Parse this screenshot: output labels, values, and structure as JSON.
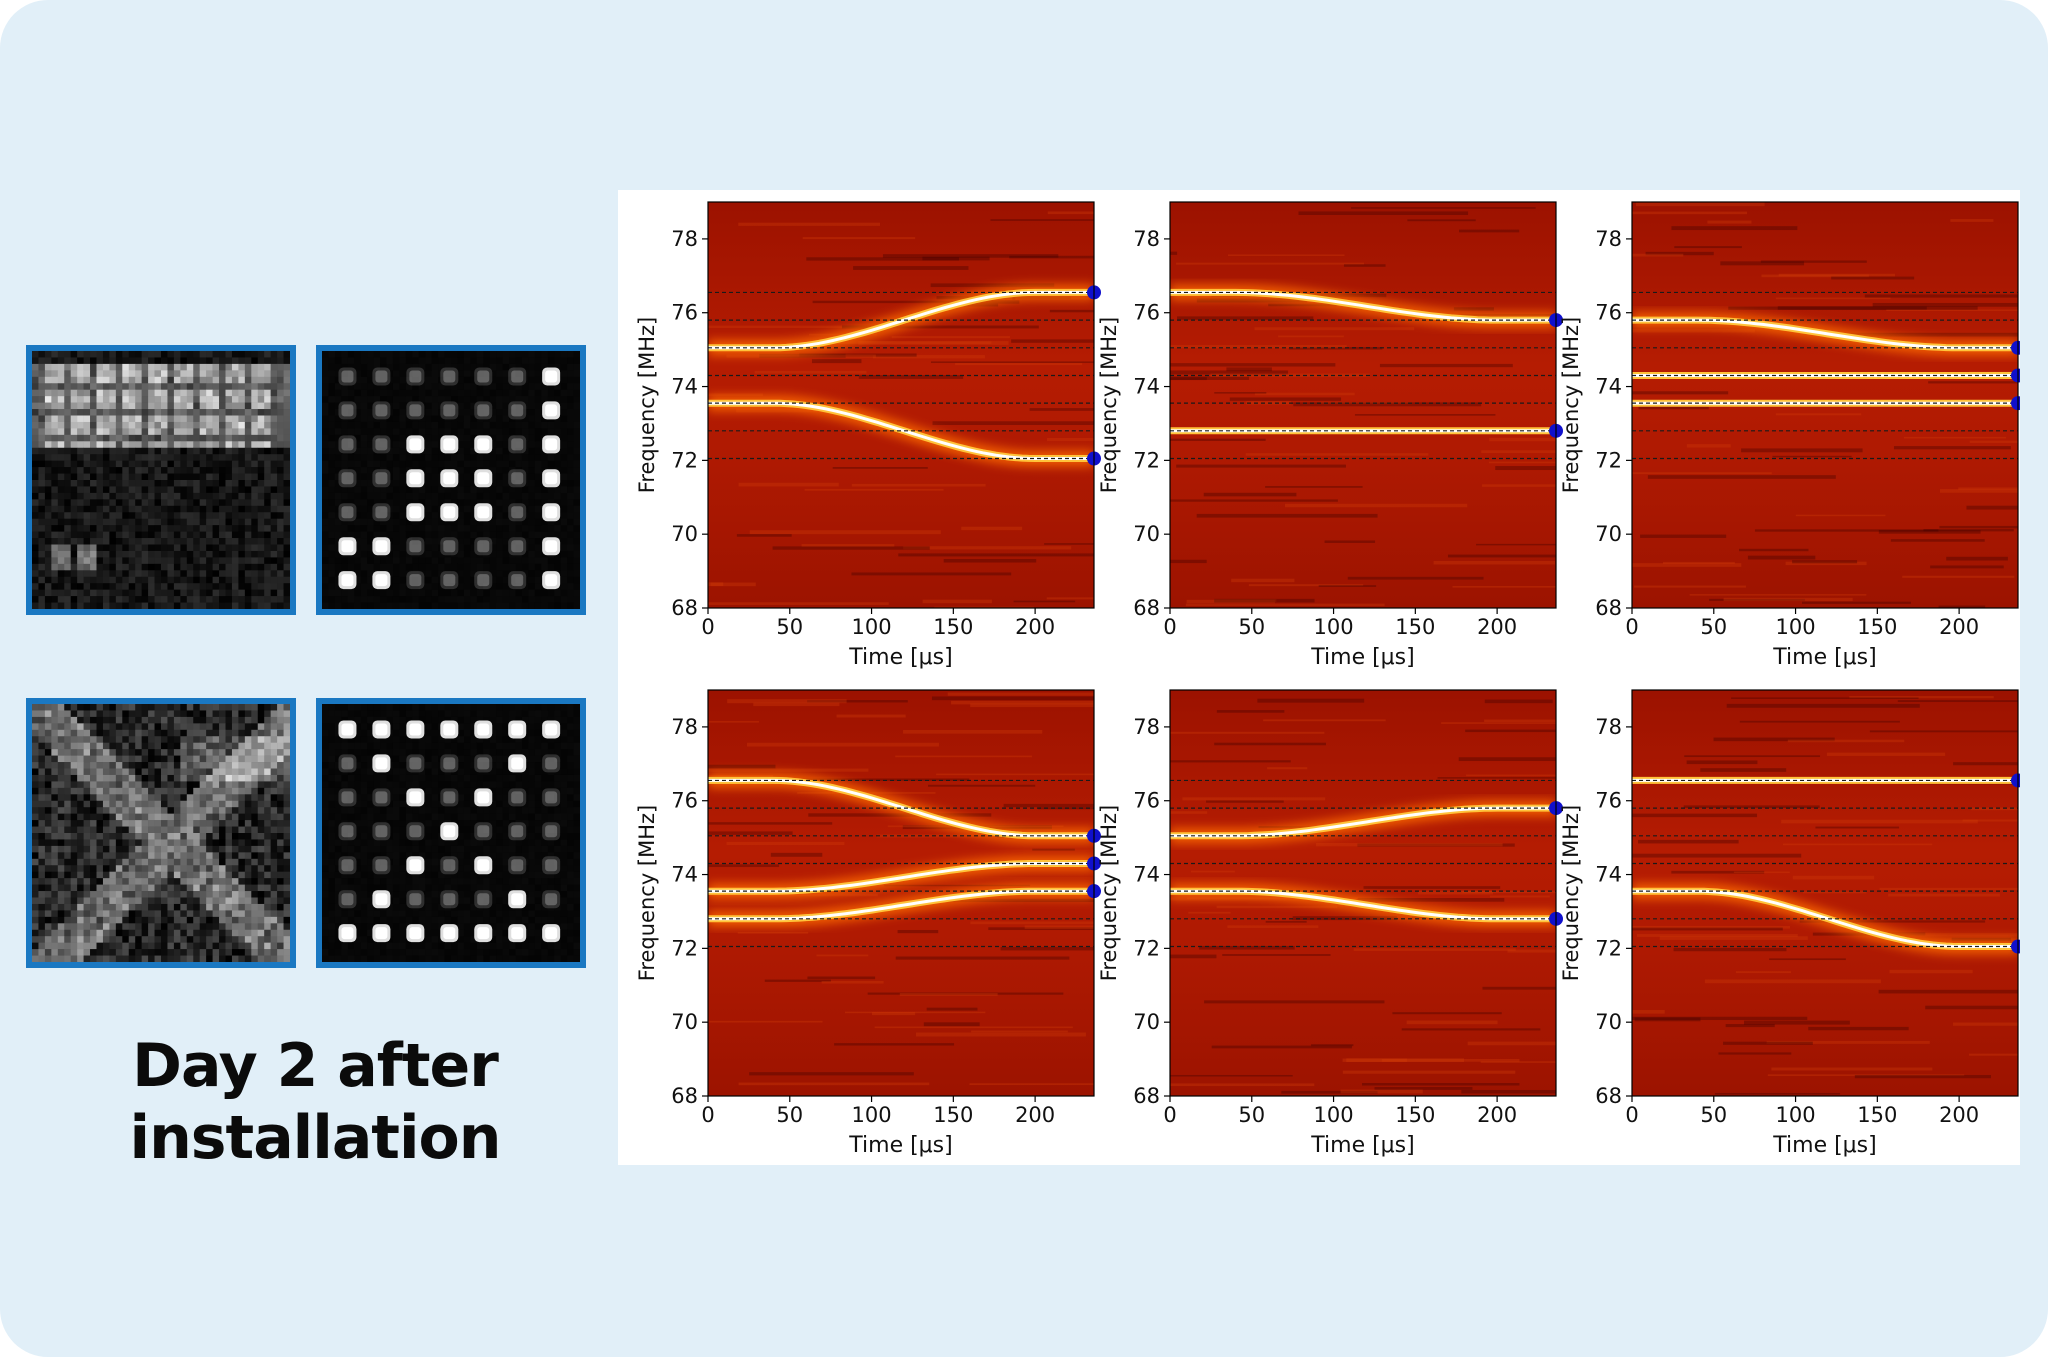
{
  "caption": {
    "line1": "Day 2 after",
    "line2": "installation"
  },
  "camera_images": [
    {
      "name": "camera-image-top-left",
      "kind": "noisy-block"
    },
    {
      "name": "camera-image-top-right",
      "kind": "sparse-grid"
    },
    {
      "name": "camera-image-bottom-left",
      "kind": "noisy-x"
    },
    {
      "name": "camera-image-bottom-right",
      "kind": "checker"
    }
  ],
  "colors": {
    "background": "#e1eff8",
    "frame": "#1a78c2",
    "heatmap_low": "#a31500",
    "heatmap_high": "#ffffff",
    "endpoint_marker": "#1010cc"
  },
  "chart_data": [
    {
      "type": "heatmap",
      "xlabel": "Time [μs]",
      "ylabel": "Frequency [MHz]",
      "xlim": [
        0,
        236
      ],
      "ylim": [
        68,
        79
      ],
      "xticks": [
        0,
        50,
        100,
        150,
        200
      ],
      "yticks": [
        68,
        70,
        72,
        74,
        76,
        78
      ],
      "reference_lines": [
        76.55,
        75.8,
        75.05,
        74.3,
        73.55,
        72.8,
        72.05
      ],
      "traces": [
        {
          "start": 75.05,
          "end": 76.55
        },
        {
          "start": 73.55,
          "end": 72.05
        }
      ]
    },
    {
      "type": "heatmap",
      "xlabel": "Time [μs]",
      "ylabel": "Frequency [MHz]",
      "xlim": [
        0,
        236
      ],
      "ylim": [
        68,
        79
      ],
      "xticks": [
        0,
        50,
        100,
        150,
        200
      ],
      "yticks": [
        68,
        70,
        72,
        74,
        76,
        78
      ],
      "reference_lines": [
        76.55,
        75.8,
        75.05,
        74.3,
        73.55,
        72.8,
        72.05
      ],
      "traces": [
        {
          "start": 76.55,
          "end": 75.8
        },
        {
          "start": 72.8,
          "end": 72.8
        }
      ]
    },
    {
      "type": "heatmap",
      "xlabel": "Time [μs]",
      "ylabel": "Frequency [MHz]",
      "xlim": [
        0,
        236
      ],
      "ylim": [
        68,
        79
      ],
      "xticks": [
        0,
        50,
        100,
        150,
        200
      ],
      "yticks": [
        68,
        70,
        72,
        74,
        76,
        78
      ],
      "reference_lines": [
        76.55,
        75.8,
        75.05,
        74.3,
        73.55,
        72.8,
        72.05
      ],
      "traces": [
        {
          "start": 75.8,
          "end": 75.05
        },
        {
          "start": 74.3,
          "end": 74.3
        },
        {
          "start": 73.55,
          "end": 73.55
        }
      ]
    },
    {
      "type": "heatmap",
      "xlabel": "Time [μs]",
      "ylabel": "Frequency [MHz]",
      "xlim": [
        0,
        236
      ],
      "ylim": [
        68,
        79
      ],
      "xticks": [
        0,
        50,
        100,
        150,
        200
      ],
      "yticks": [
        68,
        70,
        72,
        74,
        76,
        78
      ],
      "reference_lines": [
        76.55,
        75.8,
        75.05,
        74.3,
        73.55,
        72.8,
        72.05
      ],
      "traces": [
        {
          "start": 76.55,
          "end": 75.05
        },
        {
          "start": 73.55,
          "end": 74.3
        },
        {
          "start": 72.8,
          "end": 73.55
        }
      ]
    },
    {
      "type": "heatmap",
      "xlabel": "Time [μs]",
      "ylabel": "Frequency [MHz]",
      "xlim": [
        0,
        236
      ],
      "ylim": [
        68,
        79
      ],
      "xticks": [
        0,
        50,
        100,
        150,
        200
      ],
      "yticks": [
        68,
        70,
        72,
        74,
        76,
        78
      ],
      "reference_lines": [
        76.55,
        75.8,
        75.05,
        74.3,
        73.55,
        72.8,
        72.05
      ],
      "traces": [
        {
          "start": 75.05,
          "end": 75.8
        },
        {
          "start": 73.55,
          "end": 72.8
        }
      ]
    },
    {
      "type": "heatmap",
      "xlabel": "Time [μs]",
      "ylabel": "Frequency [MHz]",
      "xlim": [
        0,
        236
      ],
      "ylim": [
        68,
        79
      ],
      "xticks": [
        0,
        50,
        100,
        150,
        200
      ],
      "yticks": [
        68,
        70,
        72,
        74,
        76,
        78
      ],
      "reference_lines": [
        76.55,
        75.8,
        75.05,
        74.3,
        73.55,
        72.8,
        72.05
      ],
      "traces": [
        {
          "start": 76.55,
          "end": 76.55
        },
        {
          "start": 73.55,
          "end": 72.05
        }
      ]
    }
  ]
}
